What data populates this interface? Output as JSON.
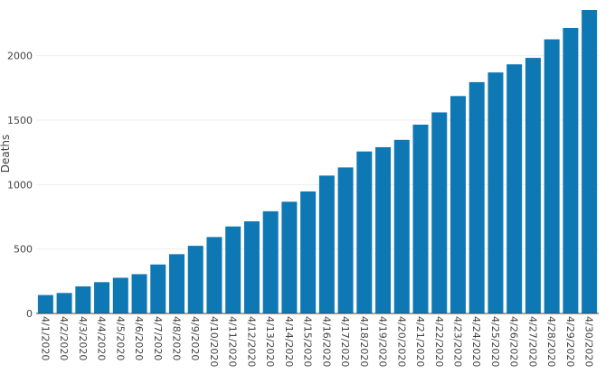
{
  "chart_data": {
    "type": "bar",
    "ylabel": "Deaths",
    "xlabel": "",
    "title": "",
    "categories": [
      "4/1/2020",
      "4/2/2020",
      "4/3/2020",
      "4/4/2020",
      "4/5/2020",
      "4/6/2020",
      "4/7/2020",
      "4/8/2020",
      "4/9/2020",
      "4/10/2020",
      "4/11/2020",
      "4/12/2020",
      "4/13/2020",
      "4/14/2020",
      "4/15/2020",
      "4/16/2020",
      "4/17/2020",
      "4/18/2020",
      "4/19/2020",
      "4/20/2020",
      "4/21/2020",
      "4/22/2020",
      "4/23/2020",
      "4/24/2020",
      "4/25/2020",
      "4/26/2020",
      "4/27/2020",
      "4/28/2020",
      "4/29/2020",
      "4/30/2020"
    ],
    "values": [
      143,
      159,
      210,
      243,
      277,
      305,
      380,
      460,
      525,
      593,
      675,
      715,
      793,
      867,
      947,
      1070,
      1133,
      1257,
      1290,
      1347,
      1465,
      1560,
      1687,
      1795,
      1870,
      1933,
      1983,
      2127,
      2215,
      2355
    ],
    "yticks": [
      0,
      500,
      1000,
      1500,
      2000
    ],
    "ylim": [
      0,
      2355
    ],
    "bar_color": "#0e78b4",
    "grid": true,
    "legend": false
  }
}
